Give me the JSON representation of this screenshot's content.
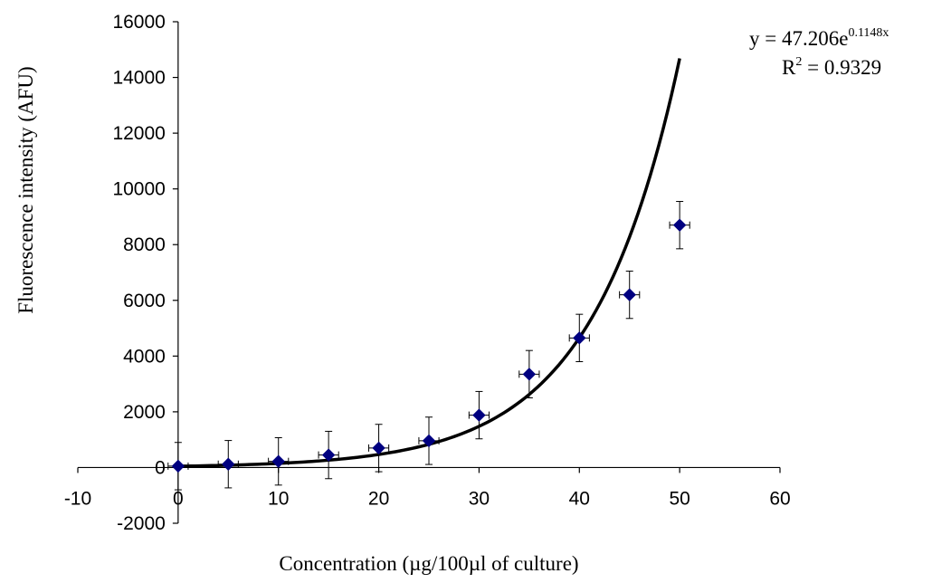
{
  "chart_data": {
    "type": "scatter",
    "title": "",
    "xlabel": "Concentration (µg/100µl of culture)",
    "ylabel": "Fluorescence intensity (AFU)",
    "xlim": [
      -10,
      60
    ],
    "ylim": [
      -2000,
      16000
    ],
    "xticks": [
      -10,
      0,
      10,
      20,
      30,
      40,
      50,
      60
    ],
    "yticks": [
      -2000,
      0,
      2000,
      4000,
      6000,
      8000,
      10000,
      12000,
      14000,
      16000
    ],
    "grid": false,
    "legend": "none",
    "series": [
      {
        "marker": "diamond",
        "color": "#000080",
        "x": [
          0,
          5,
          10,
          15,
          20,
          25,
          30,
          35,
          40,
          45,
          50
        ],
        "y": [
          50,
          120,
          220,
          450,
          700,
          960,
          1880,
          3350,
          4650,
          6200,
          8700
        ],
        "y_error": [
          850,
          850,
          850,
          850,
          850,
          850,
          850,
          850,
          850,
          850,
          850
        ],
        "x_error": [
          1,
          1,
          1,
          1,
          1,
          1,
          1,
          1,
          1,
          1,
          1
        ]
      }
    ],
    "trendline": {
      "type": "exponential",
      "a": 47.206,
      "b": 0.1148,
      "x_range": [
        0,
        50
      ],
      "color": "#000000"
    },
    "annotation": {
      "equation_base": "y = 47.206e",
      "equation_exponent": "0.1148x",
      "r2_base": "R",
      "r2_exponent": "2",
      "r2_value": " = 0.9329"
    }
  }
}
